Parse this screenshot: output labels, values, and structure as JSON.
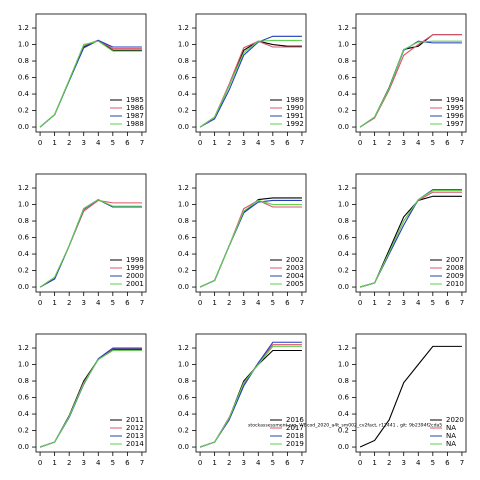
{
  "chart_data": [
    {
      "type": "line",
      "x": [
        0,
        1,
        2,
        3,
        4,
        5,
        6,
        7
      ],
      "xlim": [
        -0.28,
        7.28
      ],
      "ylim": [
        -0.06,
        1.37
      ],
      "xticks": [
        0,
        1,
        2,
        3,
        4,
        5,
        6,
        7
      ],
      "yticks": [
        {
          "value": 0,
          "label": "0.0"
        },
        0.2,
        0.4,
        0.6,
        0.8,
        {
          "value": 1,
          "label": "1.0"
        },
        1.2
      ],
      "series": [
        {
          "name": "1985",
          "color": "#000000",
          "values": [
            0,
            0.15,
            0.56,
            0.97,
            1.05,
            0.93,
            0.93,
            0.93
          ]
        },
        {
          "name": "1986",
          "color": "#df536b",
          "values": [
            0,
            0.15,
            0.57,
            0.99,
            1.05,
            0.95,
            0.95,
            0.95
          ]
        },
        {
          "name": "1987",
          "color": "#1f3fbf",
          "values": [
            0,
            0.15,
            0.56,
            0.96,
            1.05,
            0.97,
            0.97,
            0.97
          ]
        },
        {
          "name": "1988",
          "color": "#61d04f",
          "values": [
            0,
            0.15,
            0.57,
            1.0,
            1.04,
            0.92,
            0.92,
            0.92
          ]
        }
      ]
    },
    {
      "type": "line",
      "x": [
        0,
        1,
        2,
        3,
        4,
        5,
        6,
        7
      ],
      "xlim": [
        -0.28,
        7.28
      ],
      "ylim": [
        -0.06,
        1.37
      ],
      "xticks": [
        0,
        1,
        2,
        3,
        4,
        5,
        6,
        7
      ],
      "yticks": [
        {
          "value": 0,
          "label": "0.0"
        },
        0.2,
        0.4,
        0.6,
        0.8,
        {
          "value": 1,
          "label": "1.0"
        },
        1.2
      ],
      "series": [
        {
          "name": "1989",
          "color": "#000000",
          "values": [
            0,
            0.12,
            0.5,
            0.93,
            1.04,
            1.0,
            0.98,
            0.98
          ]
        },
        {
          "name": "1990",
          "color": "#df536b",
          "values": [
            0,
            0.12,
            0.52,
            0.96,
            1.04,
            0.97,
            0.97,
            0.97
          ]
        },
        {
          "name": "1991",
          "color": "#1f3fbf",
          "values": [
            0,
            0.1,
            0.45,
            0.87,
            1.03,
            1.1,
            1.1,
            1.1
          ]
        },
        {
          "name": "1992",
          "color": "#61d04f",
          "values": [
            0,
            0.12,
            0.5,
            0.9,
            1.04,
            1.05,
            1.05,
            1.05
          ]
        }
      ]
    },
    {
      "type": "line",
      "x": [
        0,
        1,
        2,
        3,
        4,
        5,
        6,
        7
      ],
      "xlim": [
        -0.28,
        7.28
      ],
      "ylim": [
        -0.06,
        1.37
      ],
      "xticks": [
        0,
        1,
        2,
        3,
        4,
        5,
        6,
        7
      ],
      "yticks": [
        {
          "value": 0,
          "label": "0.0"
        },
        0.2,
        0.4,
        0.6,
        0.8,
        {
          "value": 1,
          "label": "1.0"
        },
        1.2
      ],
      "series": [
        {
          "name": "1994",
          "color": "#000000",
          "values": [
            0,
            0.12,
            0.48,
            0.94,
            0.98,
            1.12,
            1.12,
            1.12
          ]
        },
        {
          "name": "1995",
          "color": "#df536b",
          "values": [
            0,
            0.11,
            0.45,
            0.87,
            1.0,
            1.12,
            1.12,
            1.12
          ]
        },
        {
          "name": "1996",
          "color": "#1f3fbf",
          "values": [
            0,
            0.12,
            0.47,
            0.93,
            1.04,
            1.02,
            1.02,
            1.02
          ]
        },
        {
          "name": "1997",
          "color": "#61d04f",
          "values": [
            0,
            0.12,
            0.47,
            0.94,
            1.03,
            1.04,
            1.04,
            1.04
          ]
        }
      ]
    },
    {
      "type": "line",
      "x": [
        0,
        1,
        2,
        3,
        4,
        5,
        6,
        7
      ],
      "xlim": [
        -0.28,
        7.28
      ],
      "ylim": [
        -0.06,
        1.37
      ],
      "xticks": [
        0,
        1,
        2,
        3,
        4,
        5,
        6,
        7
      ],
      "yticks": [
        {
          "value": 0,
          "label": "0.0"
        },
        0.2,
        0.4,
        0.6,
        0.8,
        {
          "value": 1,
          "label": "1.0"
        },
        1.2
      ],
      "series": [
        {
          "name": "1998",
          "color": "#000000",
          "values": [
            0,
            0.1,
            0.5,
            0.95,
            1.06,
            0.97,
            0.97,
            0.97
          ]
        },
        {
          "name": "1999",
          "color": "#df536b",
          "values": [
            0,
            0.1,
            0.5,
            0.92,
            1.05,
            1.02,
            1.02,
            1.02
          ]
        },
        {
          "name": "2000",
          "color": "#1f3fbf",
          "values": [
            0,
            0.1,
            0.5,
            0.94,
            1.06,
            0.97,
            0.97,
            0.97
          ]
        },
        {
          "name": "2001",
          "color": "#61d04f",
          "values": [
            0,
            0.12,
            0.5,
            0.95,
            1.06,
            0.98,
            0.98,
            0.98
          ]
        }
      ]
    },
    {
      "type": "line",
      "x": [
        0,
        1,
        2,
        3,
        4,
        5,
        6,
        7
      ],
      "xlim": [
        -0.28,
        7.28
      ],
      "ylim": [
        -0.06,
        1.37
      ],
      "xticks": [
        0,
        1,
        2,
        3,
        4,
        5,
        6,
        7
      ],
      "yticks": [
        {
          "value": 0,
          "label": "0.0"
        },
        0.2,
        0.4,
        0.6,
        0.8,
        {
          "value": 1,
          "label": "1.0"
        },
        1.2
      ],
      "series": [
        {
          "name": "2002",
          "color": "#000000",
          "values": [
            0,
            0.08,
            0.5,
            0.9,
            1.06,
            1.08,
            1.08,
            1.08
          ]
        },
        {
          "name": "2003",
          "color": "#df536b",
          "values": [
            0,
            0.08,
            0.5,
            0.95,
            1.05,
            0.97,
            0.97,
            0.97
          ]
        },
        {
          "name": "2004",
          "color": "#1f3fbf",
          "values": [
            0,
            0.08,
            0.5,
            0.9,
            1.03,
            1.05,
            1.05,
            1.05
          ]
        },
        {
          "name": "2005",
          "color": "#61d04f",
          "values": [
            0,
            0.08,
            0.5,
            0.92,
            1.05,
            1.0,
            1.0,
            1.0
          ]
        }
      ]
    },
    {
      "type": "line",
      "x": [
        0,
        1,
        2,
        3,
        4,
        5,
        6,
        7
      ],
      "xlim": [
        -0.28,
        7.28
      ],
      "ylim": [
        -0.06,
        1.37
      ],
      "xticks": [
        0,
        1,
        2,
        3,
        4,
        5,
        6,
        7
      ],
      "yticks": [
        {
          "value": 0,
          "label": "0.0"
        },
        0.2,
        0.4,
        0.6,
        0.8,
        {
          "value": 1,
          "label": "1.0"
        },
        1.2
      ],
      "series": [
        {
          "name": "2007",
          "color": "#000000",
          "values": [
            0,
            0.05,
            0.45,
            0.85,
            1.05,
            1.1,
            1.1,
            1.1
          ]
        },
        {
          "name": "2008",
          "color": "#df536b",
          "values": [
            0,
            0.05,
            0.42,
            0.8,
            1.05,
            1.15,
            1.15,
            1.15
          ]
        },
        {
          "name": "2009",
          "color": "#1f3fbf",
          "values": [
            0,
            0.05,
            0.4,
            0.75,
            1.06,
            1.18,
            1.18,
            1.18
          ]
        },
        {
          "name": "2010",
          "color": "#61d04f",
          "values": [
            0,
            0.05,
            0.42,
            0.8,
            1.06,
            1.17,
            1.17,
            1.17
          ]
        }
      ]
    },
    {
      "type": "line",
      "x": [
        0,
        1,
        2,
        3,
        4,
        5,
        6,
        7
      ],
      "xlim": [
        -0.28,
        7.28
      ],
      "ylim": [
        -0.06,
        1.37
      ],
      "xticks": [
        0,
        1,
        2,
        3,
        4,
        5,
        6,
        7
      ],
      "yticks": [
        {
          "value": 0,
          "label": "0.0"
        },
        0.2,
        0.4,
        0.6,
        0.8,
        {
          "value": 1,
          "label": "1.0"
        },
        1.2
      ],
      "series": [
        {
          "name": "2011",
          "color": "#000000",
          "values": [
            0,
            0.06,
            0.38,
            0.8,
            1.06,
            1.18,
            1.18,
            1.18
          ]
        },
        {
          "name": "2012",
          "color": "#df536b",
          "values": [
            0,
            0.06,
            0.37,
            0.78,
            1.06,
            1.19,
            1.19,
            1.19
          ]
        },
        {
          "name": "2013",
          "color": "#1f3fbf",
          "values": [
            0,
            0.06,
            0.36,
            0.76,
            1.07,
            1.2,
            1.2,
            1.2
          ]
        },
        {
          "name": "2014",
          "color": "#61d04f",
          "values": [
            0,
            0.06,
            0.37,
            0.77,
            1.06,
            1.17,
            1.17,
            1.17
          ]
        }
      ]
    },
    {
      "type": "line",
      "x": [
        0,
        1,
        2,
        3,
        4,
        5,
        6,
        7
      ],
      "xlim": [
        -0.28,
        7.28
      ],
      "ylim": [
        -0.06,
        1.37
      ],
      "xticks": [
        0,
        1,
        2,
        3,
        4,
        5,
        6,
        7
      ],
      "yticks": [
        {
          "value": 0,
          "label": "0.0"
        },
        0.2,
        0.4,
        0.6,
        0.8,
        {
          "value": 1,
          "label": "1.0"
        },
        1.2
      ],
      "series": [
        {
          "name": "2016",
          "color": "#000000",
          "values": [
            0,
            0.06,
            0.35,
            0.8,
            1.0,
            1.17,
            1.17,
            1.17
          ]
        },
        {
          "name": "2017",
          "color": "#df536b",
          "values": [
            0,
            0.06,
            0.36,
            0.76,
            1.02,
            1.24,
            1.24,
            1.24
          ]
        },
        {
          "name": "2018",
          "color": "#1f3fbf",
          "values": [
            0,
            0.06,
            0.33,
            0.74,
            1.02,
            1.27,
            1.27,
            1.27
          ]
        },
        {
          "name": "2019",
          "color": "#61d04f",
          "values": [
            0,
            0.06,
            0.35,
            0.78,
            1.0,
            1.22,
            1.22,
            1.22
          ]
        }
      ]
    },
    {
      "type": "line",
      "x": [
        0,
        1,
        2,
        3,
        4,
        5,
        6,
        7
      ],
      "xlim": [
        -0.28,
        7.28
      ],
      "ylim": [
        -0.06,
        1.37
      ],
      "xticks": [
        0,
        1,
        2,
        3,
        4,
        5,
        6,
        7
      ],
      "yticks": [
        {
          "value": 0,
          "label": "0.0"
        },
        0.2,
        0.4,
        0.6,
        0.8,
        {
          "value": 1,
          "label": "1.0"
        },
        1.2
      ],
      "series": [
        {
          "name": "2020",
          "color": "#000000",
          "values": [
            0,
            0.08,
            0.33,
            0.78,
            1.0,
            1.22,
            1.22,
            1.22
          ]
        },
        {
          "name": "NA",
          "color": "#df536b",
          "values": [
            null,
            null,
            null,
            null,
            null,
            null,
            null,
            null
          ]
        },
        {
          "name": "NA",
          "color": "#1f3fbf",
          "values": [
            null,
            null,
            null,
            null,
            null,
            null,
            null,
            null
          ]
        },
        {
          "name": "NA",
          "color": "#61d04f",
          "values": [
            null,
            null,
            null,
            null,
            null,
            null,
            null,
            null
          ]
        }
      ]
    }
  ],
  "footnote": "stockassessment.org, WBcod_2020_a4t_sm002_cv2fact, r12441 , git: 9b2394f2cda5"
}
